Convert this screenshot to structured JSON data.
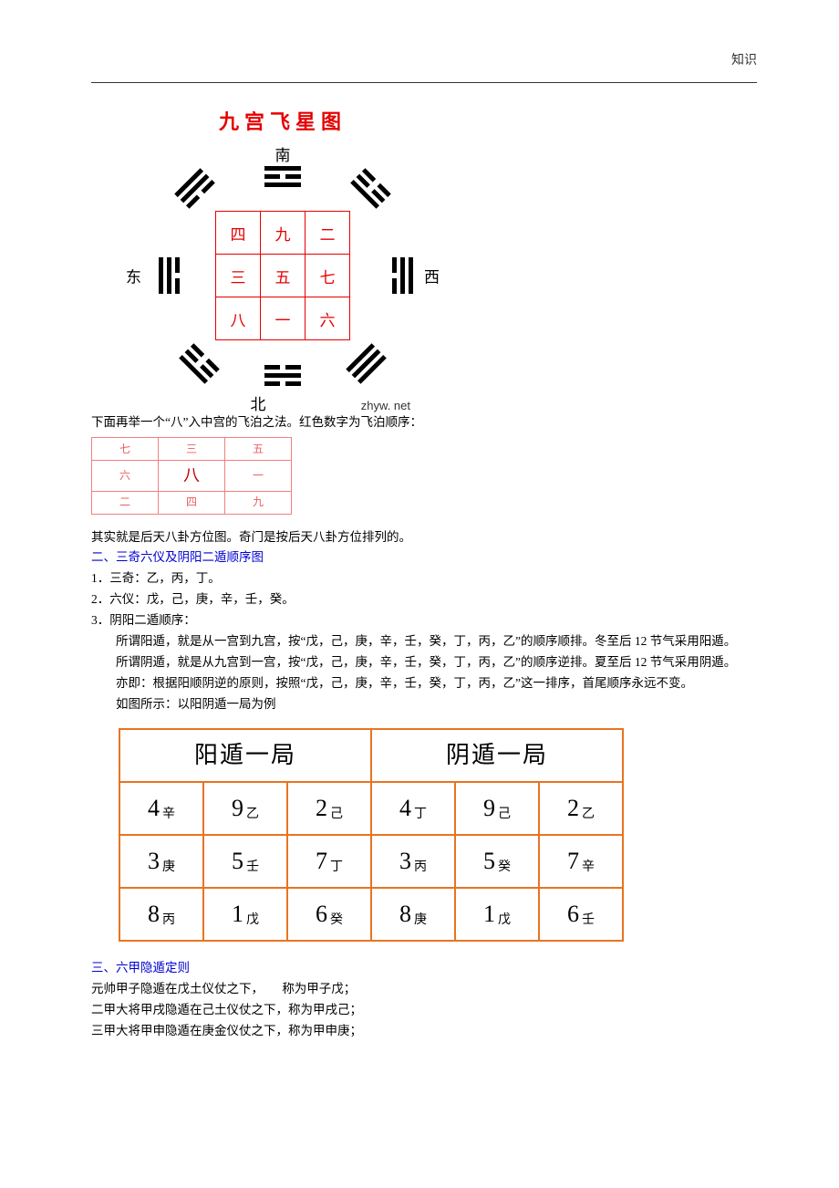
{
  "header": {
    "rightLabel": "知识"
  },
  "diagram": {
    "title": "九宫飞星图",
    "directions": {
      "n": "南",
      "s": "北",
      "e": "东",
      "w": "西"
    },
    "site": "zhyw. net",
    "grid": {
      "r1c1": "四",
      "r1c2": "九",
      "r1c3": "二",
      "r2c1": "三",
      "r2c2": "五",
      "r2c3": "七",
      "r3c1": "八",
      "r3c2": "一",
      "r3c3": "六"
    }
  },
  "p1": "下面再举一个“八”入中宫的飞泊之法。红色数字为飞泊顺序：",
  "smallTable": {
    "r1c1": "七",
    "r1c2": "三",
    "r1c3": "五",
    "r2c1": "六",
    "r2c2": "八",
    "r2c3": "一",
    "r3c1": "二",
    "r3c2": "四",
    "r3c3": "九"
  },
  "p2": "其实就是后天八卦方位图。奇门是按后天八卦方位排列的。",
  "h2": "二、三奇六仪及阴阳二遁顺序图",
  "l1": "1．三奇：乙，丙，丁。",
  "l2": "2．六仪：戊，己，庚，辛，壬，癸。",
  "l3": "3．阴阳二遁顺序：",
  "p3": "所谓阳遁，就是从一宫到九宫，按“戊，己，庚，辛，壬，癸，丁，丙，乙”的顺序顺排。冬至后 12 节气采用阳遁。",
  "p4": "所谓阴遁，就是从九宫到一宫，按“戊，己，庚，辛，壬，癸，丁，丙，乙”的顺序逆排。夏至后 12 节气采用阴遁。",
  "p5": "亦即：根据阳顺阴逆的原则，按照“戊，己，庚，辛，壬，癸，丁，丙，乙”这一排序，首尾顺序永远不变。",
  "p6": "如图所示：以阳阴遁一局为例",
  "bigTable": {
    "h1": "阳遁一局",
    "h2": "阴遁一局",
    "yang": [
      [
        "4",
        "辛",
        "9",
        "乙",
        "2",
        "己"
      ],
      [
        "3",
        "庚",
        "5",
        "壬",
        "7",
        "丁"
      ],
      [
        "8",
        "丙",
        "1",
        "戊",
        "6",
        "癸"
      ]
    ],
    "yin": [
      [
        "4",
        "丁",
        "9",
        "己",
        "2",
        "乙"
      ],
      [
        "3",
        "丙",
        "5",
        "癸",
        "7",
        "辛"
      ],
      [
        "8",
        "庚",
        "1",
        "戊",
        "6",
        "壬"
      ]
    ]
  },
  "h3": "三、六甲隐遁定则",
  "d1a": "元帅甲子隐遁在戊土仪仗之下，",
  "d1b": "称为甲子戊；",
  "d2": "二甲大将甲戌隐遁在己土仪仗之下，称为甲戌己；",
  "d3": "三甲大将甲申隐遁在庚金仪仗之下，称为甲申庚；"
}
